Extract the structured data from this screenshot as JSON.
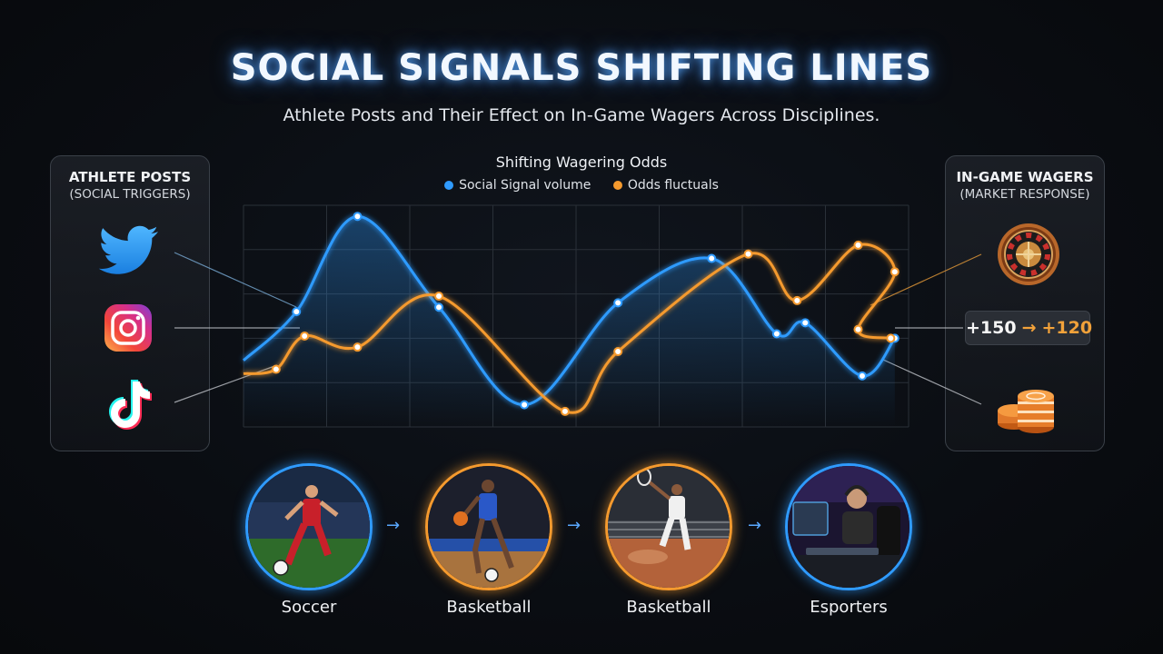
{
  "header": {
    "title": "SOCIAL SIGNALS SHIFTING LINES",
    "subtitle": "Athlete Posts and Their Effect on In-Game Wagers Across Disciplines."
  },
  "left_panel": {
    "title": "ATHLETE POSTS",
    "subtitle": "(SOCIAL TRIGGERS)",
    "icons": [
      "twitter-icon",
      "instagram-icon",
      "tiktok-icon"
    ]
  },
  "right_panel": {
    "title": "IN-GAME WAGERS",
    "subtitle": "(MARKET RESPONSE)",
    "odds_from": "+150",
    "odds_arrow": "→",
    "odds_to": "+120",
    "icons": [
      "roulette-icon",
      "poker-chips-icon"
    ]
  },
  "colors": {
    "signal": "#2f9bff",
    "odds": "#f59a2e",
    "background": "#0a0d12"
  },
  "chart_data": {
    "type": "line",
    "title": "Shifting Wagering Odds",
    "grid": true,
    "legend_position": "top-center",
    "xlim": [
      0,
      10
    ],
    "ylim": [
      0,
      100
    ],
    "series": [
      {
        "name": "Social Signal volume",
        "color": "#2f9bff",
        "points": [
          [
            0,
            30
          ],
          [
            0.65,
            52
          ],
          [
            1.4,
            95
          ],
          [
            2.4,
            54
          ],
          [
            3.45,
            10
          ],
          [
            4.6,
            56
          ],
          [
            5.75,
            76
          ],
          [
            6.55,
            42
          ],
          [
            6.9,
            47
          ],
          [
            7.6,
            23
          ],
          [
            8.0,
            40
          ]
        ]
      },
      {
        "name": "Odds fluctuals",
        "color": "#f59a2e",
        "points": [
          [
            0,
            24
          ],
          [
            0.4,
            26
          ],
          [
            0.75,
            41
          ],
          [
            1.4,
            36
          ],
          [
            2.4,
            59
          ],
          [
            3.95,
            7
          ],
          [
            4.6,
            34
          ],
          [
            6.2,
            78
          ],
          [
            6.8,
            57
          ],
          [
            7.55,
            82
          ],
          [
            8.0,
            70
          ],
          [
            7.55,
            44
          ],
          [
            7.95,
            40
          ]
        ]
      }
    ]
  },
  "sports": [
    {
      "label": "Soccer",
      "ring": "#2f9bff"
    },
    {
      "label": "Basketball",
      "ring": "#f59a2e"
    },
    {
      "label": "Basketball",
      "ring": "#f59a2e"
    },
    {
      "label": "Esporters",
      "ring": "#2f9bff"
    }
  ]
}
